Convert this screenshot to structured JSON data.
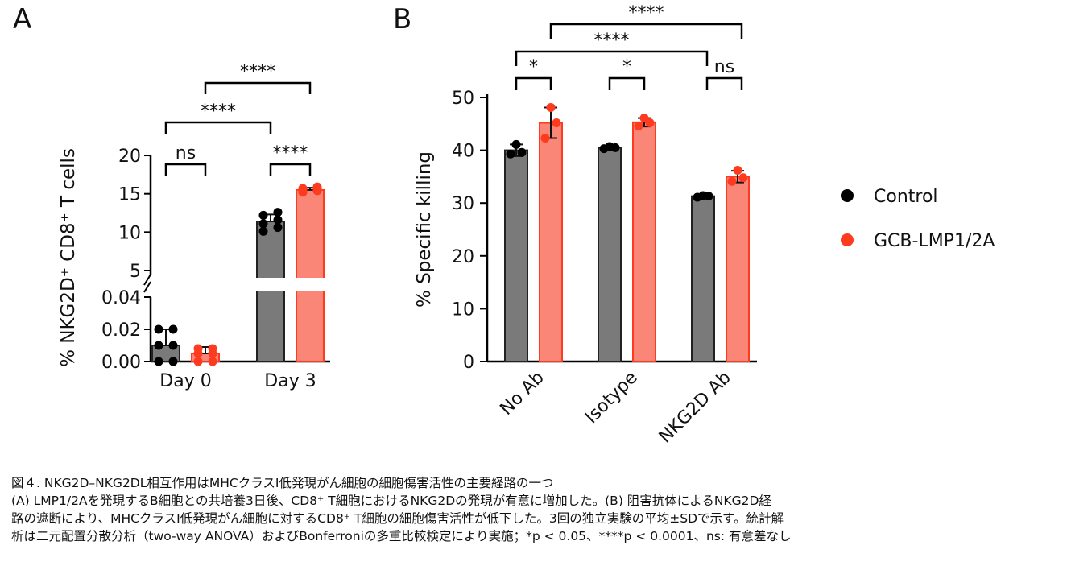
{
  "figure": {
    "panel_labels": [
      "A",
      "B"
    ],
    "legend": [
      {
        "label": "Control",
        "color": "#000000"
      },
      {
        "label": "GCB-LMP1/2A",
        "color": "#ff3b1f"
      }
    ],
    "colors": {
      "control_bar": "#7a7a7a",
      "gcb_bar": "#f98677",
      "gcb_edge": "#ff3b1f",
      "control_point": "#000000",
      "gcb_point": "#ff3b1f"
    }
  },
  "chart_data": [
    {
      "panel": "A",
      "type": "bar",
      "ylabel": "% NKG2D⁺ CD8⁺ T cells",
      "categories": [
        "Day 0",
        "Day 3"
      ],
      "y_axis_broken": true,
      "y_lower_range": [
        0,
        0.04
      ],
      "y_lower_ticks": [
        "0.00",
        "0.02",
        "0.04"
      ],
      "y_upper_range": [
        5,
        20
      ],
      "y_upper_ticks": [
        "5",
        "10",
        "15",
        "20"
      ],
      "series": [
        {
          "name": "Control",
          "values": [
            0.01,
            11.4
          ],
          "sd": [
            0.01,
            0.9
          ],
          "points": [
            [
              0.0,
              0.0,
              0.01,
              0.01,
              0.02,
              0.02
            ],
            [
              10.1,
              10.6,
              11.1,
              11.6,
              12.2,
              12.6
            ]
          ]
        },
        {
          "name": "GCB-LMP1/2A",
          "values": [
            0.005,
            15.5
          ],
          "sd": [
            0.004,
            0.3
          ],
          "points": [
            [
              0.0,
              0.0,
              0.005,
              0.005,
              0.008,
              0.008
            ],
            [
              15.2,
              15.4,
              15.5,
              15.6,
              15.7,
              15.9
            ]
          ]
        }
      ],
      "significance": [
        {
          "label": "ns",
          "from": "Day 0 Control",
          "to": "Day 0 GCB-LMP1/2A"
        },
        {
          "label": "****",
          "from": "Day 3 Control",
          "to": "Day 3 GCB-LMP1/2A"
        },
        {
          "label": "****",
          "from": "Day 0 Control",
          "to": "Day 3 Control"
        },
        {
          "label": "****",
          "from": "Day 0 GCB-LMP1/2A",
          "to": "Day 3 GCB-LMP1/2A"
        }
      ]
    },
    {
      "panel": "B",
      "type": "bar",
      "ylabel": "% Specific killing",
      "categories": [
        "No Ab",
        "Isotype",
        "NKG2D Ab"
      ],
      "ylim": [
        0,
        50
      ],
      "yticks": [
        "0",
        "10",
        "20",
        "30",
        "40",
        "50"
      ],
      "series": [
        {
          "name": "Control",
          "values": [
            40.0,
            40.5,
            31.3
          ],
          "sd": [
            1.1,
            0.3,
            0.2
          ],
          "points": [
            [
              39.3,
              39.6,
              41.1
            ],
            [
              40.3,
              40.5,
              40.7
            ],
            [
              31.1,
              31.3,
              31.4
            ]
          ]
        },
        {
          "name": "GCB-LMP1/2A",
          "values": [
            45.2,
            45.3,
            35.0
          ],
          "sd": [
            2.9,
            0.8,
            1.1
          ],
          "points": [
            [
              42.3,
              45.2,
              48.1
            ],
            [
              44.6,
              45.2,
              46.1
            ],
            [
              34.1,
              34.8,
              36.2
            ]
          ]
        }
      ],
      "significance": [
        {
          "label": "*",
          "from": "No Ab Control",
          "to": "No Ab GCB-LMP1/2A"
        },
        {
          "label": "*",
          "from": "Isotype Control",
          "to": "Isotype GCB-LMP1/2A"
        },
        {
          "label": "ns",
          "from": "NKG2D Ab Control",
          "to": "NKG2D Ab GCB-LMP1/2A"
        },
        {
          "label": "****",
          "from": "No Ab Control",
          "to": "NKG2D Ab Control"
        },
        {
          "label": "****",
          "from": "No Ab GCB-LMP1/2A",
          "to": "NKG2D Ab GCB-LMP1/2A"
        }
      ]
    }
  ],
  "caption": {
    "title": "図４. NKG2D–NKG2DL相互作用はMHCクラスI低発現がん細胞の細胞傷害活性の主要経路の一つ",
    "line1": "(A) LMP1/2Aを発現するB細胞との共培養3日後、CD8⁺ T細胞におけるNKG2Dの発現が有意に増加した。(B) 阻害抗体によるNKG2D経",
    "line2": "路の遮断により、MHCクラスI低発現がん細胞に対するCD8⁺ T細胞の細胞傷害活性が低下した。3回の独立実験の平均±SDで示す。統計解",
    "line3": "析は二元配置分散分析（two-way ANOVA）およびBonferroniの多重比較検定により実施；*p < 0.05、****p < 0.0001、ns: 有意差なし"
  }
}
